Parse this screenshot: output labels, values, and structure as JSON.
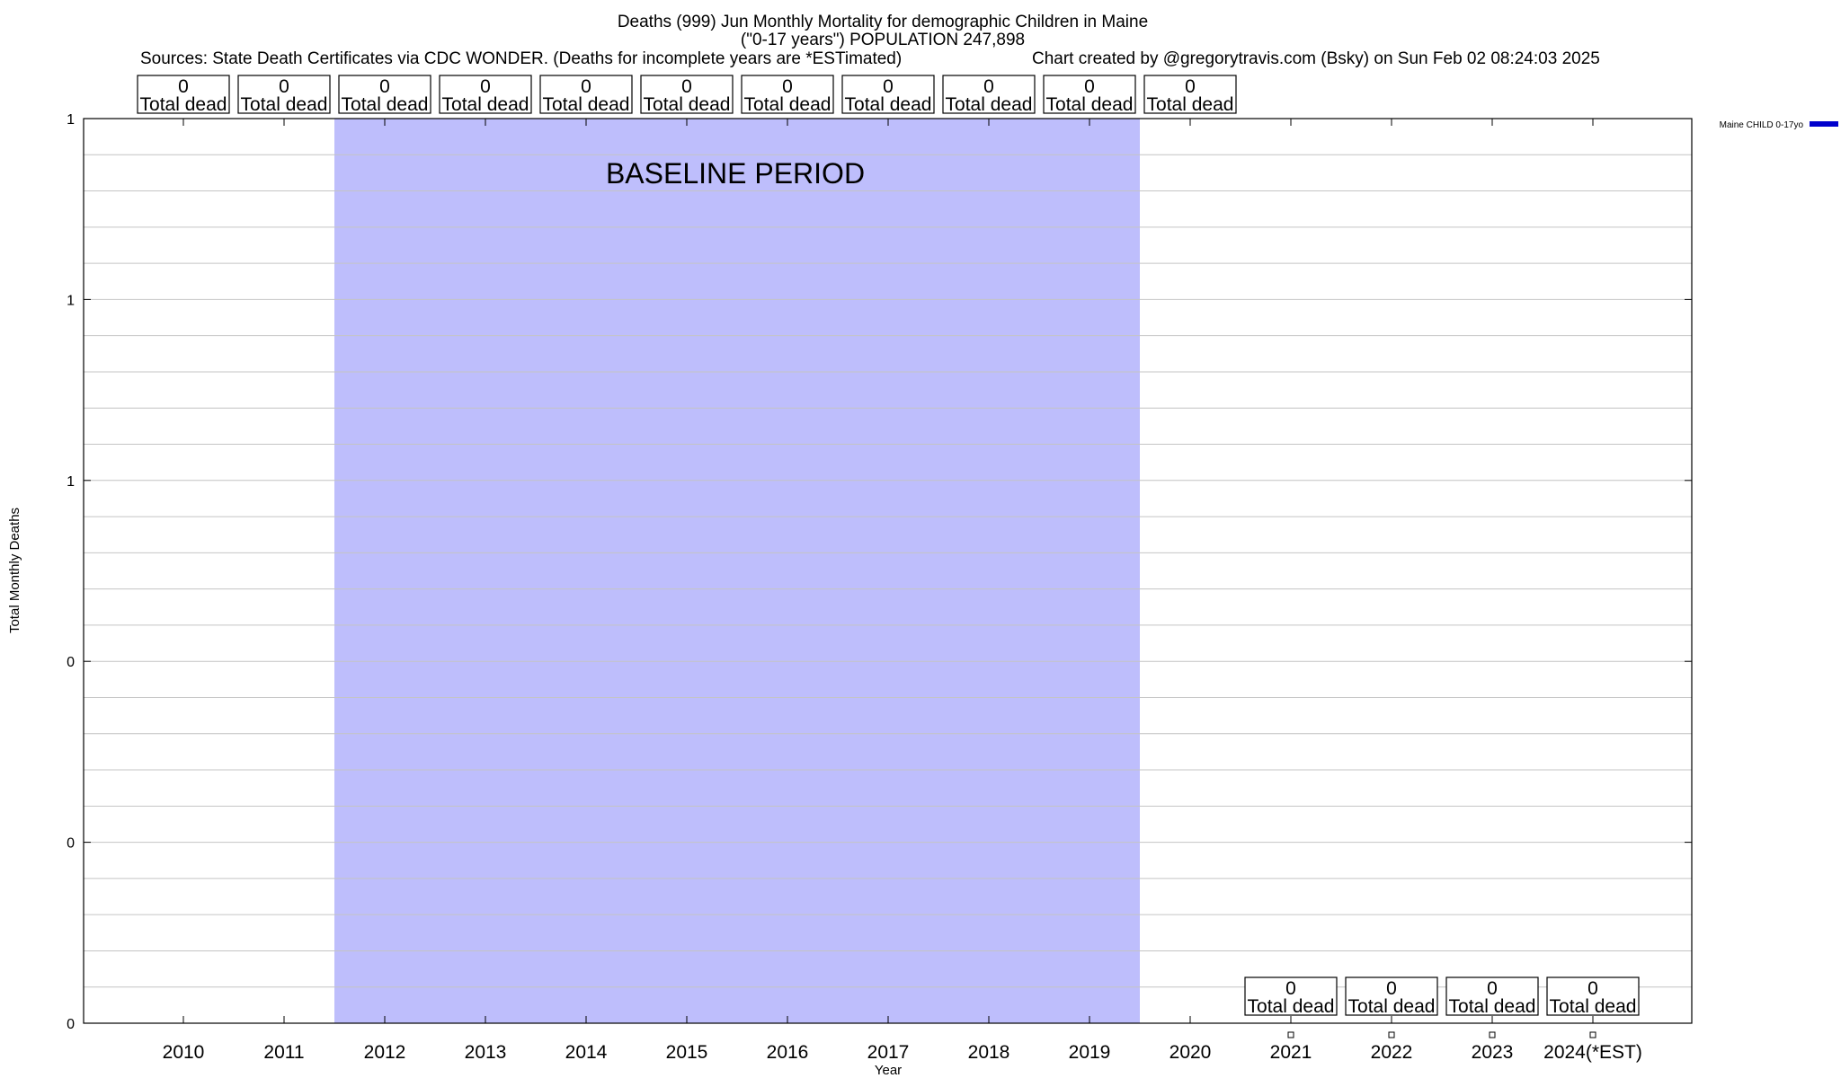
{
  "chart_data": {
    "type": "bar",
    "title_lines": [
      "Deaths (999) Jun Monthly Mortality for demographic Children in Maine",
      "(\"0-17 years\") POPULATION 247,898"
    ],
    "sources": "Sources: State Death Certificates via CDC WONDER. (Deaths for incomplete years are *ESTimated)",
    "credit": "Chart created by @gregorytravis.com (Bsky) on Sun Feb 02 08:24:03 2025",
    "xlabel": "Year",
    "ylabel": "Total Monthly Deaths",
    "ylim": [
      0,
      1
    ],
    "y_tick_labels": [
      "0",
      "0",
      "0",
      "1",
      "1",
      "1"
    ],
    "categories": [
      "2010",
      "2011",
      "2012",
      "2013",
      "2014",
      "2015",
      "2016",
      "2017",
      "2018",
      "2019",
      "2020",
      "2021",
      "2022",
      "2023",
      "2024(*EST)"
    ],
    "series": [
      {
        "name": "Maine CHILD 0-17yo",
        "color": "#0000cc",
        "values": [
          0,
          0,
          0,
          0,
          0,
          0,
          0,
          0,
          0,
          0,
          0,
          0,
          0,
          0,
          0
        ]
      }
    ],
    "annotation_boxes_top": [
      {
        "value": "0",
        "label": "Total dead"
      },
      {
        "value": "0",
        "label": "Total dead"
      },
      {
        "value": "0",
        "label": "Total dead"
      },
      {
        "value": "0",
        "label": "Total dead"
      },
      {
        "value": "0",
        "label": "Total dead"
      },
      {
        "value": "0",
        "label": "Total dead"
      },
      {
        "value": "0",
        "label": "Total dead"
      },
      {
        "value": "0",
        "label": "Total dead"
      },
      {
        "value": "0",
        "label": "Total dead"
      },
      {
        "value": "0",
        "label": "Total dead"
      },
      {
        "value": "0",
        "label": "Total dead"
      }
    ],
    "annotation_boxes_bottom": [
      {
        "value": "0",
        "label": "Total dead"
      },
      {
        "value": "0",
        "label": "Total dead"
      },
      {
        "value": "0",
        "label": "Total dead"
      },
      {
        "value": "0",
        "label": "Total dead"
      }
    ],
    "baseline": {
      "label": "BASELINE PERIOD",
      "from": "2012",
      "to": "2019",
      "color": "#bebefc"
    },
    "grid": true,
    "legend_position": "top-right"
  }
}
